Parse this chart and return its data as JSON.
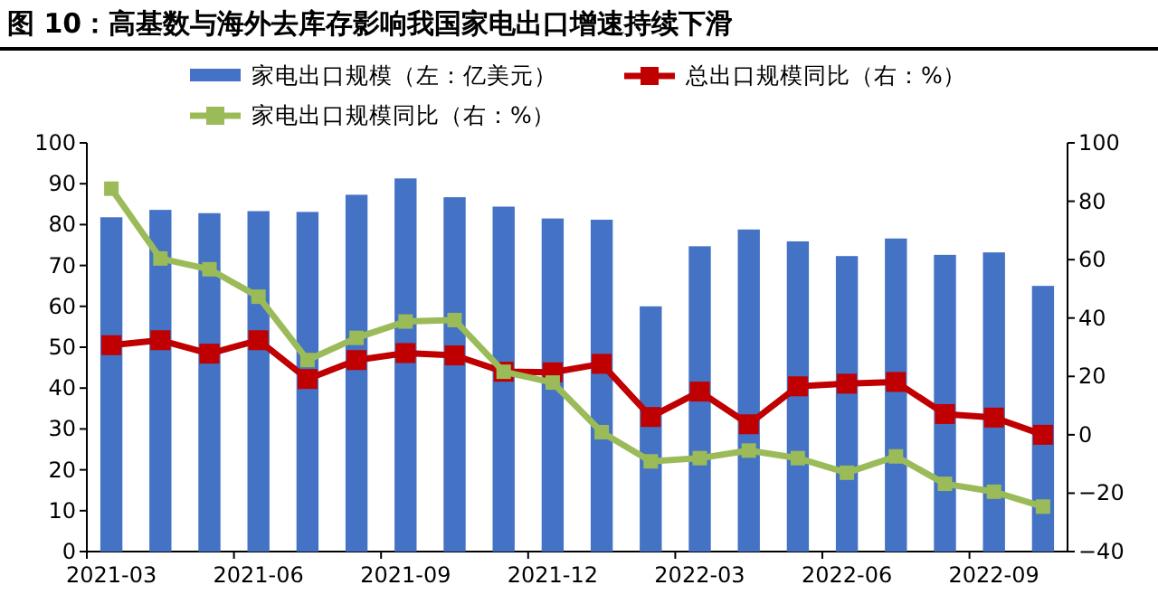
{
  "chart_data": {
    "type": "bar",
    "title": "图 10：高基数与海外去库存影响我国家电出口增速持续下滑",
    "categories": [
      "2021-03",
      null,
      null,
      "2021-06",
      null,
      null,
      "2021-09",
      null,
      null,
      "2021-12",
      null,
      null,
      "2022-03",
      null,
      null,
      "2022-06",
      null,
      null,
      "2022-09",
      null
    ],
    "series": [
      {
        "name": "家电出口规模（左：亿美元）",
        "color": "#4472c4",
        "values": [
          81.8,
          83.6,
          82.8,
          83.3,
          83.1,
          87.3,
          91.3,
          86.7,
          84.4,
          81.5,
          81.2,
          60,
          74.7,
          78.8,
          75.9,
          72.3,
          76.6,
          72.6,
          73.2,
          65
        ]
      },
      {
        "name": "总出口规模同比（右：%）",
        "type": "line",
        "axis": "y2",
        "color": "#c00000",
        "marker": "square",
        "values": [
          30.7,
          32.4,
          27.8,
          32.4,
          19.1,
          25.6,
          28,
          27.2,
          21.6,
          21.4,
          24.3,
          6.1,
          14.8,
          3.6,
          16.6,
          17.5,
          18.1,
          7.1,
          5.9,
          0
        ]
      },
      {
        "name": "家电出口规模同比（右：%）",
        "type": "line",
        "axis": "y2",
        "color": "#9bbb59",
        "marker": "square",
        "values": [
          84.3,
          60.4,
          56.7,
          47.3,
          25.6,
          33.2,
          38.8,
          39.3,
          21.6,
          17.9,
          0.9,
          -9.1,
          -8,
          -5.4,
          -8,
          -13,
          -7.4,
          -16.8,
          -19.5,
          -24.6
        ]
      }
    ],
    "ylim": [
      0,
      100
    ],
    "yticks": [
      0,
      10,
      20,
      30,
      40,
      50,
      60,
      70,
      80,
      90,
      100
    ],
    "y2lim": [
      -40,
      100
    ],
    "y2ticks": [
      -40,
      -20,
      0,
      20,
      40,
      60,
      80,
      100
    ],
    "legend": "top",
    "grid": false
  }
}
